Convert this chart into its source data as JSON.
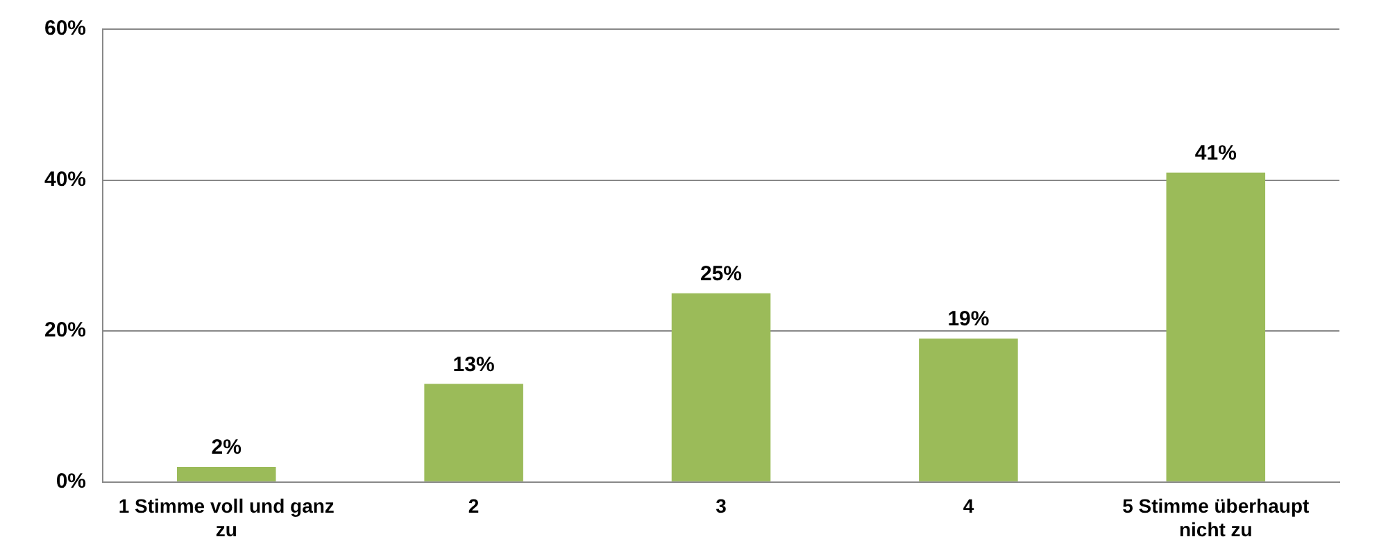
{
  "chart_data": {
    "type": "bar",
    "categories": [
      "1 Stimme voll und ganz zu",
      "2",
      "3",
      "4",
      "5 Stimme überhaupt nicht zu"
    ],
    "values": [
      2,
      13,
      25,
      19,
      41
    ],
    "value_labels": [
      "2%",
      "13%",
      "25%",
      "19%",
      "41%"
    ],
    "color": "#9bbb59",
    "ylim": [
      0,
      60
    ],
    "yticks": [
      {
        "value": 0,
        "label": "0%"
      },
      {
        "value": 20,
        "label": "20%"
      },
      {
        "value": 40,
        "label": "40%"
      },
      {
        "value": 60,
        "label": "60%"
      }
    ],
    "grid": "y",
    "legend": false
  }
}
